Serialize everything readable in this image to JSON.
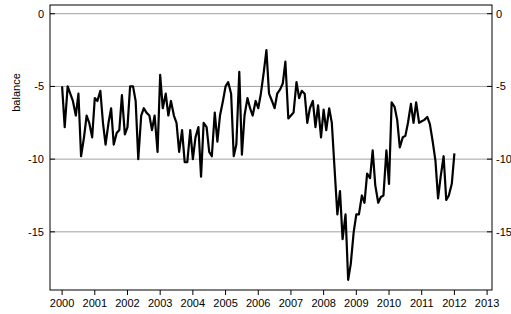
{
  "chart_data": {
    "type": "line",
    "y_label": "balance",
    "color": "#000000",
    "grid": true,
    "xlim": [
      1999.63,
      2013.15
    ],
    "xticks": [
      2000,
      2001,
      2002,
      2003,
      2004,
      2005,
      2006,
      2007,
      2008,
      2009,
      2010,
      2011,
      2012,
      2013
    ],
    "ylim": [
      -19,
      0.6
    ],
    "yticks": [
      0,
      -5,
      -10,
      -15
    ],
    "x": [
      2000.0,
      2000.08,
      2000.17,
      2000.25,
      2000.33,
      2000.42,
      2000.5,
      2000.58,
      2000.67,
      2000.75,
      2000.83,
      2000.92,
      2001.0,
      2001.08,
      2001.17,
      2001.25,
      2001.33,
      2001.42,
      2001.5,
      2001.58,
      2001.67,
      2001.75,
      2001.83,
      2001.92,
      2002.0,
      2002.08,
      2002.17,
      2002.25,
      2002.33,
      2002.42,
      2002.5,
      2002.58,
      2002.67,
      2002.75,
      2002.83,
      2002.92,
      2003.0,
      2003.08,
      2003.17,
      2003.25,
      2003.33,
      2003.42,
      2003.5,
      2003.58,
      2003.67,
      2003.75,
      2003.83,
      2003.92,
      2004.0,
      2004.08,
      2004.17,
      2004.25,
      2004.33,
      2004.42,
      2004.5,
      2004.58,
      2004.67,
      2004.75,
      2004.83,
      2004.92,
      2005.0,
      2005.08,
      2005.17,
      2005.25,
      2005.33,
      2005.42,
      2005.5,
      2005.58,
      2005.67,
      2005.75,
      2005.83,
      2005.92,
      2006.0,
      2006.08,
      2006.17,
      2006.25,
      2006.33,
      2006.42,
      2006.5,
      2006.58,
      2006.67,
      2006.75,
      2006.83,
      2006.92,
      2007.0,
      2007.08,
      2007.17,
      2007.25,
      2007.33,
      2007.42,
      2007.5,
      2007.58,
      2007.67,
      2007.75,
      2007.83,
      2007.92,
      2008.0,
      2008.08,
      2008.17,
      2008.25,
      2008.33,
      2008.42,
      2008.5,
      2008.58,
      2008.67,
      2008.75,
      2008.83,
      2008.92,
      2009.0,
      2009.08,
      2009.17,
      2009.25,
      2009.33,
      2009.42,
      2009.5,
      2009.58,
      2009.67,
      2009.75,
      2009.83,
      2009.92,
      2010.0,
      2010.08,
      2010.17,
      2010.25,
      2010.33,
      2010.42,
      2010.5,
      2010.58,
      2010.67,
      2010.75,
      2010.83,
      2010.92,
      2011.0,
      2011.08,
      2011.17,
      2011.25,
      2011.33,
      2011.42,
      2011.5,
      2011.58,
      2011.67,
      2011.75,
      2011.83,
      2011.92,
      2012.0
    ],
    "values": [
      -5,
      -7.8,
      -5,
      -5.5,
      -6,
      -7,
      -5.5,
      -9.8,
      -8.5,
      -7,
      -7.5,
      -8.5,
      -5.8,
      -6,
      -5.3,
      -7.5,
      -9,
      -7.5,
      -6.5,
      -9,
      -8.2,
      -8,
      -5.6,
      -8.3,
      -7.8,
      -5,
      -5,
      -6,
      -10,
      -7,
      -6.5,
      -6.8,
      -7,
      -8,
      -7,
      -9.5,
      -4.2,
      -6.5,
      -5.5,
      -7,
      -6,
      -7,
      -7.5,
      -9.5,
      -8,
      -10.2,
      -10.2,
      -8,
      -10,
      -8.5,
      -7.8,
      -11.2,
      -7.5,
      -7.8,
      -9.5,
      -9.8,
      -6.8,
      -8.8,
      -7,
      -6,
      -5,
      -4.7,
      -5.5,
      -9.8,
      -9,
      -4,
      -9.7,
      -7,
      -5.8,
      -6.5,
      -7,
      -6,
      -6.5,
      -5.5,
      -4,
      -2.5,
      -5.5,
      -6,
      -6.5,
      -5.5,
      -5.2,
      -4.8,
      -3.3,
      -7.2,
      -7,
      -6.8,
      -4.7,
      -5.8,
      -5.3,
      -5.5,
      -7.5,
      -6.5,
      -6,
      -7.8,
      -6.3,
      -8.5,
      -6.6,
      -8,
      -6.5,
      -7.5,
      -10.5,
      -13.8,
      -12.2,
      -15.5,
      -13.8,
      -18.3,
      -17.2,
      -15,
      -13.8,
      -13.8,
      -12.5,
      -13,
      -11,
      -11.3,
      -9.4,
      -11.8,
      -13,
      -12.6,
      -12.5,
      -9.4,
      -11.7,
      -6.1,
      -6.4,
      -7.3,
      -9.2,
      -8.5,
      -8.4,
      -7.5,
      -6.2,
      -7.5,
      -6.1,
      -7.5,
      -7.4,
      -7.3,
      -7.1,
      -7.6,
      -8.7,
      -10.1,
      -12.7,
      -11.2,
      -9.8,
      -12.8,
      -12.5,
      -11.7,
      -9.6
    ]
  }
}
